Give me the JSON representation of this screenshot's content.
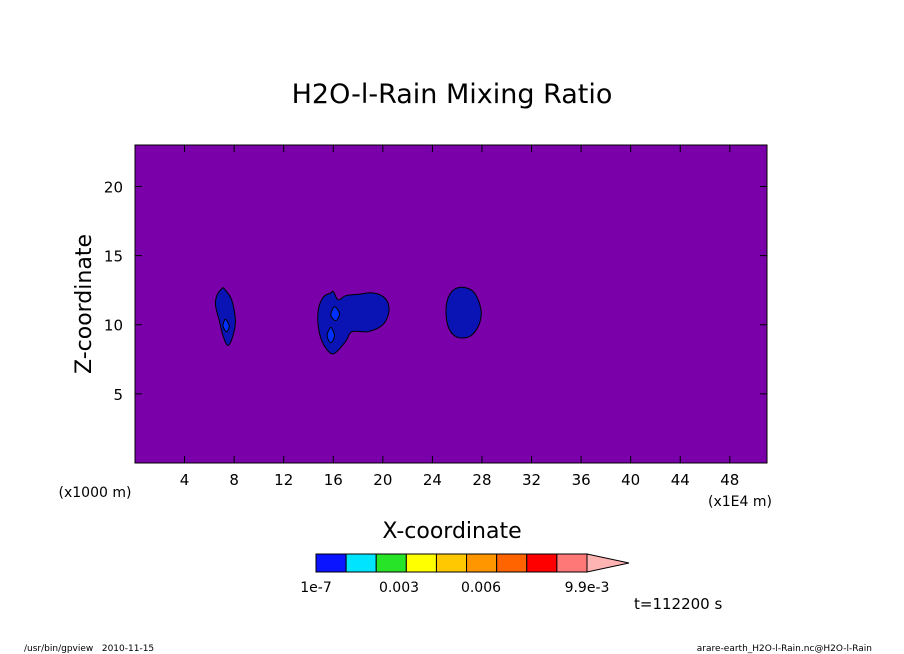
{
  "chart_data": {
    "type": "contour",
    "title": "H2O-l-Rain Mixing Ratio",
    "xlabel": "X-coordinate",
    "ylabel": "Z-coordinate",
    "x_unit_label": "(x1E4 m)",
    "y_unit_label": "(x1000 m)",
    "xlim": [
      0,
      51
    ],
    "ylim": [
      0,
      23
    ],
    "x_ticks": [
      "4",
      "8",
      "12",
      "16",
      "20",
      "24",
      "28",
      "32",
      "36",
      "40",
      "44",
      "48"
    ],
    "y_ticks": [
      "5",
      "10",
      "15",
      "20"
    ],
    "x_tick_values": [
      4,
      8,
      12,
      16,
      20,
      24,
      28,
      32,
      36,
      40,
      44,
      48
    ],
    "y_tick_values": [
      5,
      10,
      15,
      20
    ],
    "background_color": "#7a00aa",
    "blobs": [
      {
        "name": "blob-1",
        "color": "#0a14b4",
        "points": [
          [
            7.2,
            12.6
          ],
          [
            7.8,
            11.8
          ],
          [
            8.1,
            10.3
          ],
          [
            7.9,
            9.2
          ],
          [
            7.5,
            8.5
          ],
          [
            7.1,
            9.2
          ],
          [
            6.8,
            10.3
          ],
          [
            6.5,
            11.4
          ],
          [
            6.6,
            12.1
          ],
          [
            7.0,
            12.6
          ]
        ]
      },
      {
        "name": "blob-2",
        "color": "#0a14b4",
        "points": [
          [
            16.0,
            12.4
          ],
          [
            16.4,
            11.8
          ],
          [
            17.0,
            12.1
          ],
          [
            18.0,
            12.2
          ],
          [
            19.2,
            12.3
          ],
          [
            20.2,
            11.9
          ],
          [
            20.5,
            11.0
          ],
          [
            20.0,
            10.0
          ],
          [
            18.8,
            9.5
          ],
          [
            17.5,
            9.5
          ],
          [
            17.0,
            8.8
          ],
          [
            16.0,
            7.9
          ],
          [
            15.2,
            8.6
          ],
          [
            14.8,
            9.8
          ],
          [
            14.8,
            11.1
          ],
          [
            15.2,
            12.0
          ],
          [
            15.8,
            12.3
          ]
        ]
      },
      {
        "name": "blob-3",
        "color": "#0a14b4",
        "points": [
          [
            26.2,
            12.7
          ],
          [
            27.3,
            12.4
          ],
          [
            27.9,
            11.2
          ],
          [
            27.8,
            10.1
          ],
          [
            27.1,
            9.2
          ],
          [
            26.0,
            9.1
          ],
          [
            25.3,
            9.8
          ],
          [
            25.1,
            11.1
          ],
          [
            25.4,
            12.2
          ]
        ]
      },
      {
        "name": "blob-4",
        "color": "#0030ff",
        "points": [
          [
            7.3,
            10.4
          ],
          [
            7.6,
            9.9
          ],
          [
            7.4,
            9.5
          ],
          [
            7.1,
            9.9
          ]
        ]
      },
      {
        "name": "blob-5",
        "color": "#0030ff",
        "points": [
          [
            16.1,
            11.3
          ],
          [
            16.5,
            10.8
          ],
          [
            16.2,
            10.3
          ],
          [
            15.8,
            10.7
          ]
        ]
      },
      {
        "name": "blob-6",
        "color": "#0030ff",
        "points": [
          [
            15.8,
            9.8
          ],
          [
            16.1,
            9.2
          ],
          [
            15.8,
            8.7
          ],
          [
            15.5,
            9.2
          ]
        ]
      }
    ],
    "colorbar": {
      "colors": [
        "#0a14ff",
        "#00e4ff",
        "#28e428",
        "#ffff00",
        "#ffc800",
        "#ff9600",
        "#ff6400",
        "#ff0000",
        "#ff7878"
      ],
      "arrow_color": "#ffb4b4",
      "labels": [
        "1e-7",
        "0.003",
        "0.006",
        "9.9e-3"
      ]
    }
  },
  "time_label": "t=112200 s",
  "footer": {
    "left": "/usr/bin/gpview   2010-11-15",
    "right": "arare-earth_H2O-l-Rain.nc@H2O-l-Rain"
  }
}
